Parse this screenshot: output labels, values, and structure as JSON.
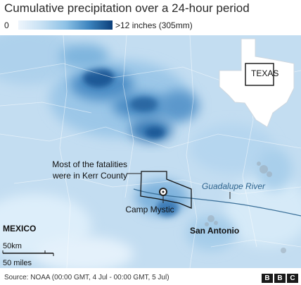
{
  "title": "Cumulative precipitation over a 24-hour period",
  "legend": {
    "min_label": "0",
    "max_label": ">12 inches (305mm)"
  },
  "map": {
    "inset_label": "TEXAS",
    "annotation_line1": "Most of the fatalities",
    "annotation_line2": "were in Kerr County",
    "marker_label": "Camp Mystic",
    "river_label": "Guadalupe River",
    "city_label": "San Antonio",
    "country_label": "MEXICO",
    "scale_km": "50km",
    "scale_miles": "50 miles"
  },
  "footer": {
    "source": "Source: NOAA (00:00 GMT, 4 Jul - 00:00 GMT, 5 Jul)",
    "brand": [
      "B",
      "B",
      "C"
    ]
  },
  "colors": {
    "scale_low": "#eef5fc",
    "scale_high": "#0b3f7a",
    "river": "#3a6f98"
  }
}
